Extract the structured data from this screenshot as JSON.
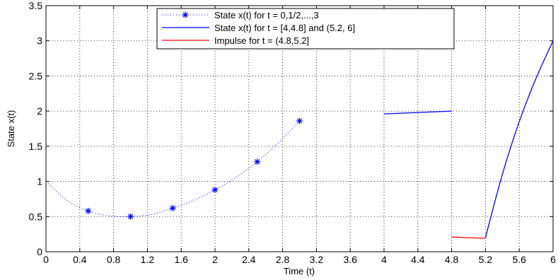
{
  "chart_data": {
    "type": "line",
    "title": "",
    "xlabel": "Time (t)",
    "ylabel": "State x(t)",
    "xlim": [
      0,
      6
    ],
    "ylim": [
      0,
      3.5
    ],
    "grid": true,
    "legend_position": "top-center",
    "x_ticks": [
      "0",
      "0.4",
      "0.8",
      "1.2",
      "1.6",
      "2",
      "2.4",
      "2.8",
      "3.2",
      "3.6",
      "4",
      "4.4",
      "4.8",
      "5.2",
      "5.6",
      "6"
    ],
    "y_ticks": [
      "0",
      "0.5",
      "1",
      "1.5",
      "2",
      "2.5",
      "3",
      "3.5"
    ],
    "series": [
      {
        "name": "State x(t) for t = 0,1/2,...,3",
        "style": "dotted-star",
        "color": "#0000ff",
        "curve": {
          "x": [
            0,
            0.25,
            0.5,
            0.75,
            1.0,
            1.25,
            1.5,
            1.75,
            2.0,
            2.25,
            2.5,
            2.75,
            3.0
          ],
          "y": [
            1.0,
            0.73,
            0.58,
            0.51,
            0.5,
            0.53,
            0.62,
            0.73,
            0.88,
            1.06,
            1.28,
            1.55,
            1.86
          ]
        },
        "markers": {
          "x": [
            0.5,
            1.0,
            1.5,
            2.0,
            2.5,
            3.0
          ],
          "y": [
            0.58,
            0.5,
            0.62,
            0.88,
            1.28,
            1.86
          ]
        }
      },
      {
        "name": "State x(t) for t = [4,4.8] and (5.2, 6]",
        "style": "solid",
        "color": "#0000ff",
        "segments": [
          {
            "x": [
              4.0,
              4.4,
              4.8
            ],
            "y": [
              1.96,
              1.98,
              2.0
            ]
          },
          {
            "x": [
              5.2,
              5.4,
              5.6,
              5.8,
              6.0
            ],
            "y": [
              0.2,
              1.1,
              1.85,
              2.47,
              3.0
            ]
          }
        ]
      },
      {
        "name": "Impulse for t = (4.8,5.2]",
        "style": "solid",
        "color": "#ff0000",
        "segments": [
          {
            "x": [
              4.8,
              5.2
            ],
            "y": [
              0.21,
              0.19
            ]
          }
        ]
      }
    ]
  }
}
